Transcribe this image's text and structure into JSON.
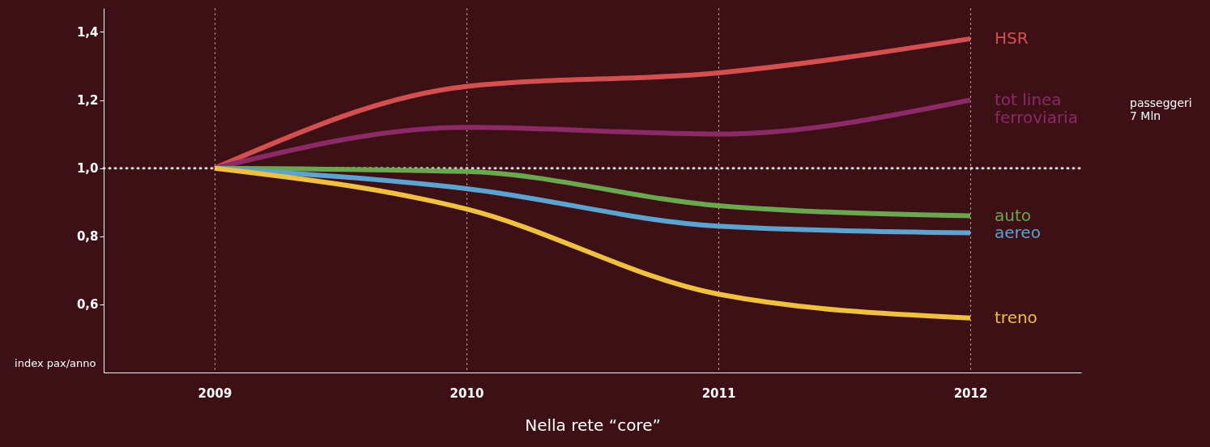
{
  "chart_data": {
    "type": "line",
    "xlabel": "Nella rete “core”",
    "ylabel": "index pax/anno",
    "categories": [
      "2009",
      "2010",
      "2011",
      "2012"
    ],
    "series": [
      {
        "name": "HSR",
        "color": "#d45050",
        "values": [
          1.0,
          1.24,
          1.28,
          1.38
        ]
      },
      {
        "name": "tot linea\nferroviaria",
        "color": "#8b2a66",
        "values": [
          1.0,
          1.12,
          1.1,
          1.2
        ]
      },
      {
        "name": "auto",
        "color": "#6aa84f",
        "values": [
          1.0,
          0.99,
          0.89,
          0.86
        ]
      },
      {
        "name": "aereo",
        "color": "#5ba3d0",
        "values": [
          1.0,
          0.94,
          0.83,
          0.81
        ]
      },
      {
        "name": "treno",
        "color": "#f0c040",
        "values": [
          1.0,
          0.88,
          0.63,
          0.56
        ]
      }
    ],
    "ylim": [
      0.4,
      1.47
    ],
    "yticks": [
      {
        "value": 0.6,
        "label": "0,6"
      },
      {
        "value": 0.8,
        "label": "0,8"
      },
      {
        "value": 1.0,
        "label": "1,0"
      },
      {
        "value": 1.2,
        "label": "1,2"
      },
      {
        "value": 1.4,
        "label": "1,4"
      }
    ],
    "ref_lines": [
      {
        "axis": "y",
        "value": 1.0,
        "color": "#dddddd",
        "line_style": "dotted"
      }
    ],
    "grid": "x",
    "legend": false,
    "line_style": "solid",
    "annotations": [
      "passeggeri\n7 Mln"
    ]
  }
}
